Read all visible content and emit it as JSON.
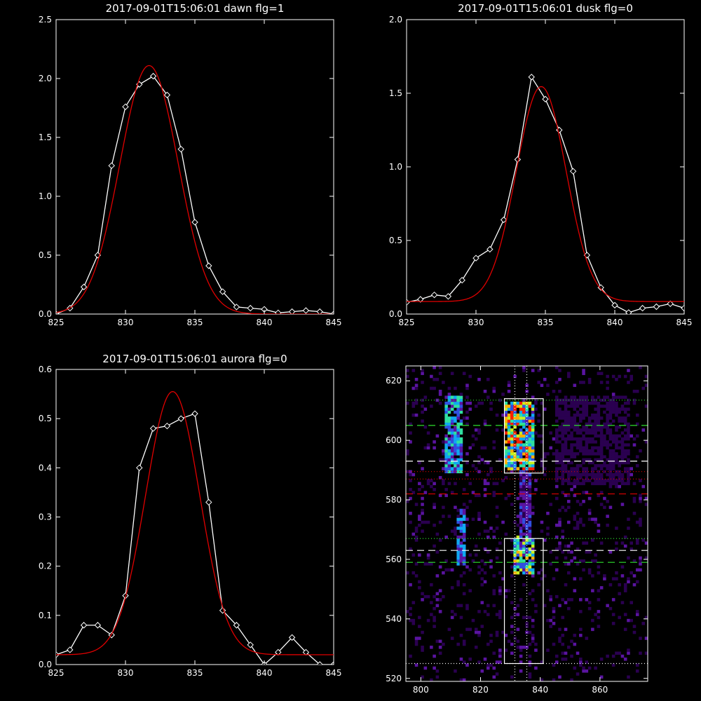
{
  "colors": {
    "background": "#000000",
    "axes": "#ffffff",
    "data_line": "#ffffff",
    "fit_line": "#e00000",
    "guide_green": "#2ee02e",
    "guide_red": "#e00000",
    "guide_white": "#ffffff"
  },
  "chart_data": [
    {
      "type": "line",
      "title": "2017-09-01T15:06:01 dawn flg=1",
      "xlabel": "",
      "ylabel": "",
      "xlim": [
        825,
        845
      ],
      "ylim": [
        0,
        2.5
      ],
      "xticks": [
        825,
        830,
        835,
        840,
        845
      ],
      "xtick_labels": [
        "825",
        "830",
        "835",
        "840",
        "845"
      ],
      "yticks": [
        0,
        0.5,
        1.0,
        1.5,
        2.0,
        2.5
      ],
      "ytick_labels": [
        "0.0",
        "0.5",
        "1.0",
        "1.5",
        "2.0",
        "2.5"
      ],
      "series": [
        {
          "style": "data",
          "markers": "diamond",
          "color": "#ffffff",
          "x": [
            825,
            826,
            827,
            828,
            829,
            830,
            831,
            832,
            833,
            834,
            835,
            836,
            837,
            838,
            839,
            840,
            841,
            842,
            843,
            844,
            845
          ],
          "y": [
            0.0,
            0.05,
            0.23,
            0.5,
            1.26,
            1.76,
            1.95,
            2.02,
            1.86,
            1.4,
            0.78,
            0.41,
            0.19,
            0.06,
            0.05,
            0.04,
            0.01,
            0.02,
            0.03,
            0.02,
            0.0
          ]
        },
        {
          "style": "fit",
          "color": "#e00000",
          "gaussian": {
            "amplitude": 2.11,
            "center": 831.7,
            "sigma": 2.1,
            "offset": 0.0
          }
        }
      ]
    },
    {
      "type": "line",
      "title": "2017-09-01T15:06:01 dusk flg=0",
      "xlabel": "",
      "ylabel": "",
      "xlim": [
        825,
        845
      ],
      "ylim": [
        0,
        2.0
      ],
      "xticks": [
        825,
        830,
        835,
        840,
        845
      ],
      "xtick_labels": [
        "825",
        "830",
        "835",
        "840",
        "845"
      ],
      "yticks": [
        0,
        0.5,
        1.0,
        1.5,
        2.0
      ],
      "ytick_labels": [
        "0.0",
        "0.5",
        "1.0",
        "1.5",
        "2.0"
      ],
      "series": [
        {
          "style": "data",
          "markers": "diamond",
          "color": "#ffffff",
          "x": [
            825,
            826,
            827,
            828,
            829,
            830,
            831,
            832,
            833,
            834,
            835,
            836,
            837,
            838,
            839,
            840,
            841,
            842,
            843,
            844,
            845
          ],
          "y": [
            0.08,
            0.1,
            0.13,
            0.12,
            0.23,
            0.38,
            0.44,
            0.64,
            1.05,
            1.61,
            1.46,
            1.25,
            0.97,
            0.4,
            0.18,
            0.06,
            0.01,
            0.04,
            0.05,
            0.07,
            0.04
          ]
        },
        {
          "style": "fit",
          "color": "#e00000",
          "gaussian": {
            "amplitude": 1.46,
            "center": 834.7,
            "sigma": 1.8,
            "offset": 0.085
          }
        }
      ]
    },
    {
      "type": "line",
      "title": "2017-09-01T15:06:01 aurora flg=0",
      "xlabel": "",
      "ylabel": "",
      "xlim": [
        825,
        845
      ],
      "ylim": [
        0,
        0.6
      ],
      "xticks": [
        825,
        830,
        835,
        840,
        845
      ],
      "xtick_labels": [
        "825",
        "830",
        "835",
        "840",
        "845"
      ],
      "yticks": [
        0,
        0.1,
        0.2,
        0.3,
        0.4,
        0.5,
        0.6
      ],
      "ytick_labels": [
        "0.0",
        "0.1",
        "0.2",
        "0.3",
        "0.4",
        "0.5",
        "0.6"
      ],
      "series": [
        {
          "style": "data",
          "markers": "diamond",
          "color": "#ffffff",
          "x": [
            825,
            826,
            827,
            828,
            829,
            830,
            831,
            832,
            833,
            834,
            835,
            836,
            837,
            838,
            839,
            840,
            841,
            842,
            843,
            844,
            845
          ],
          "y": [
            0.02,
            0.03,
            0.08,
            0.08,
            0.06,
            0.14,
            0.4,
            0.48,
            0.485,
            0.5,
            0.51,
            0.33,
            0.11,
            0.08,
            0.04,
            0.0,
            0.025,
            0.055,
            0.025,
            0.0,
            0.0
          ]
        },
        {
          "style": "fit",
          "color": "#e00000",
          "gaussian": {
            "amplitude": 0.535,
            "center": 833.4,
            "sigma": 1.95,
            "offset": 0.02
          }
        }
      ]
    },
    {
      "type": "heatmap",
      "title": "",
      "xlabel": "",
      "ylabel": "",
      "xlim": [
        795,
        876
      ],
      "ylim": [
        519,
        625
      ],
      "xticks": [
        800,
        820,
        840,
        860
      ],
      "xtick_labels": [
        "800",
        "820",
        "840",
        "860"
      ],
      "yticks": [
        520,
        540,
        560,
        580,
        600,
        620
      ],
      "ytick_labels": [
        "520",
        "540",
        "560",
        "580",
        "600",
        "620"
      ],
      "colormap": [
        "#000000",
        "#2a0050",
        "#5a14a0",
        "#3050e0",
        "#10a8f0",
        "#30e0a0",
        "#c8f020",
        "#ffb000",
        "#ff2000"
      ],
      "hot_regions": [
        {
          "x": [
            808,
            814
          ],
          "y": [
            589,
            615
          ],
          "level": 0.55
        },
        {
          "x": [
            812,
            815
          ],
          "y": [
            558,
            577
          ],
          "level": 0.45
        },
        {
          "x": [
            828,
            838
          ],
          "y": [
            590,
            613
          ],
          "level": 0.85
        },
        {
          "x": [
            831,
            838
          ],
          "y": [
            555,
            568
          ],
          "level": 0.7
        },
        {
          "x": [
            833,
            837
          ],
          "y": [
            568,
            590
          ],
          "level": 0.3
        },
        {
          "x": [
            845,
            870
          ],
          "y": [
            585,
            615
          ],
          "level": 0.12
        },
        {
          "x": [
            795,
            876
          ],
          "y": [
            520,
            625
          ],
          "level": 0.05
        }
      ],
      "boxes": [
        {
          "x": [
            828,
            841
          ],
          "y": [
            589,
            614
          ]
        },
        {
          "x": [
            828,
            841
          ],
          "y": [
            525,
            567
          ]
        }
      ],
      "vlines": [
        {
          "x": 831.5,
          "style": "dotted",
          "color": "#ffffff"
        },
        {
          "x": 835.5,
          "style": "dotted",
          "color": "#ffffff"
        }
      ],
      "hlines": [
        {
          "y": 613.5,
          "style": "dotted",
          "color": "#2ee02e"
        },
        {
          "y": 605,
          "style": "dashed",
          "color": "#2ee02e"
        },
        {
          "y": 593,
          "style": "dashed",
          "color": "#ffffff"
        },
        {
          "y": 589.5,
          "style": "dotted",
          "color": "#e00000"
        },
        {
          "y": 587,
          "style": "dotted",
          "color": "#e00000"
        },
        {
          "y": 582,
          "style": "dashed",
          "color": "#e00000"
        },
        {
          "y": 567,
          "style": "dotted",
          "color": "#2ee02e"
        },
        {
          "y": 563,
          "style": "dashed",
          "color": "#ffffff"
        },
        {
          "y": 559,
          "style": "dashed",
          "color": "#2ee02e"
        },
        {
          "y": 525,
          "style": "dotted",
          "color": "#ffffff"
        }
      ]
    }
  ]
}
